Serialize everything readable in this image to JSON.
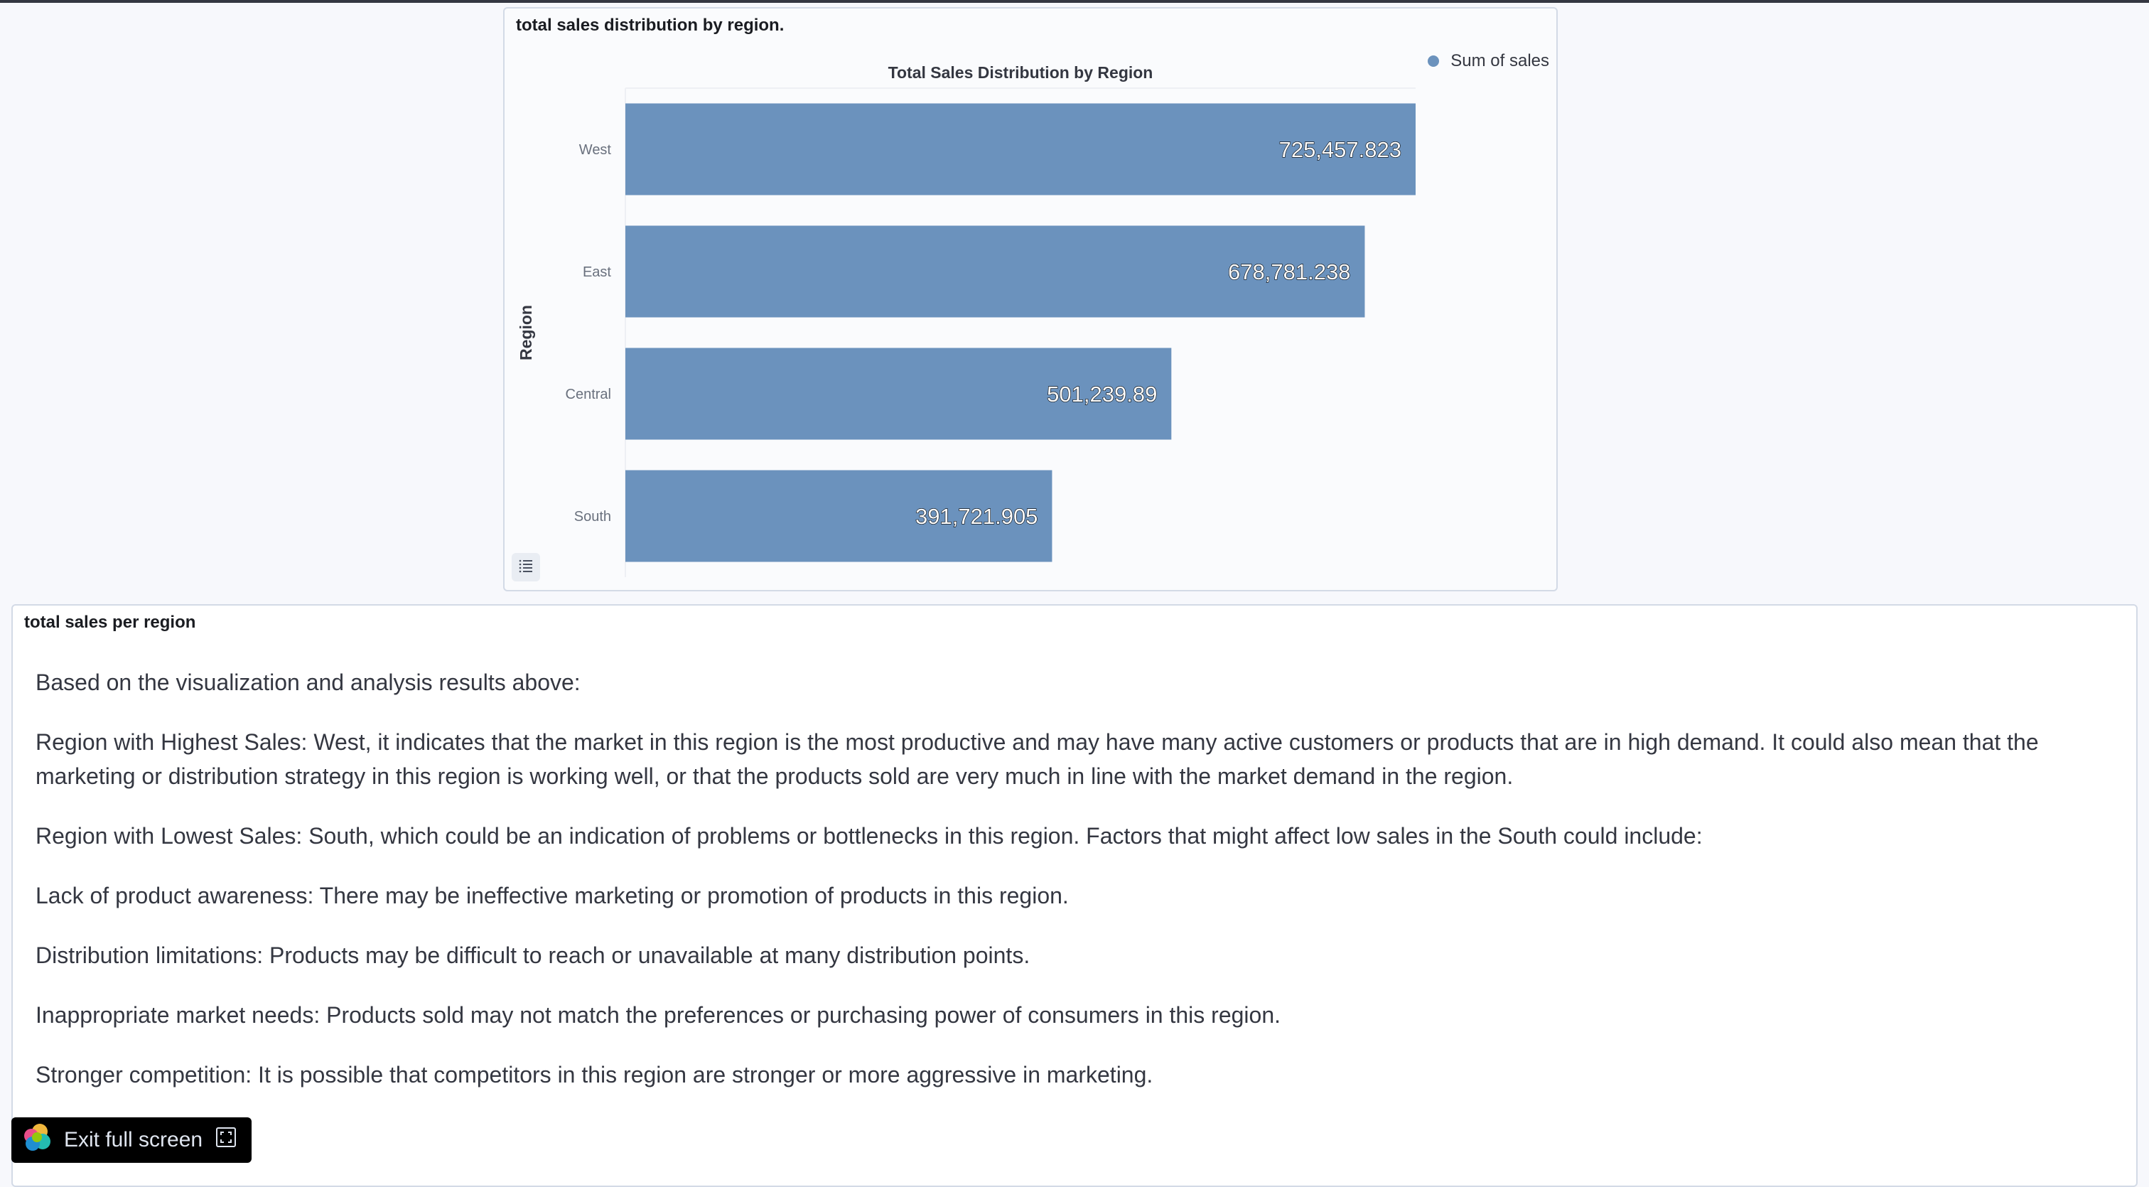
{
  "panels": {
    "chart_panel_title": "total sales distribution by region.",
    "text_panel_title": "total sales per region"
  },
  "chart_data": {
    "type": "bar",
    "orientation": "horizontal",
    "title": "Total Sales Distribution by Region",
    "xlabel": "",
    "ylabel": "Region",
    "categories": [
      "West",
      "East",
      "Central",
      "South"
    ],
    "series": [
      {
        "name": "Sum of sales",
        "values": [
          725457.823,
          678781.238,
          501239.89,
          391721.905
        ],
        "labels": [
          "725,457.823",
          "678,781.238",
          "501,239.89",
          "391,721.905"
        ]
      }
    ],
    "xlim": [
      0,
      725457.823
    ],
    "grid": false,
    "legend_position": "top-right",
    "bar_color": "#6b92bd"
  },
  "analysis": {
    "paragraphs": [
      "Based on the visualization and analysis results above:",
      "Region with Highest Sales: West, it indicates that the market in this region is the most productive and may have many active customers or products that are in high demand. It could also mean that the marketing or distribution strategy in this region is working well, or that the products sold are very much in line with the market demand in the region.",
      "Region with Lowest Sales: South, which could be an indication of problems or bottlenecks in this region. Factors that might affect low sales in the South could include:",
      "Lack of product awareness: There may be ineffective marketing or promotion of products in this region.",
      "Distribution limitations: Products may be difficult to reach or unavailable at many distribution points.",
      "Inappropriate market needs: Products sold may not match the preferences or purchasing power of consumers in this region.",
      "Stronger competition: It is possible that competitors in this region are stronger or more aggressive in marketing."
    ]
  },
  "exit_fullscreen": {
    "label": "Exit full screen",
    "icon": "fullscreen-exit-icon",
    "logo": "elastic-logo-icon"
  },
  "icons": {
    "legend_toggle": "list-icon"
  }
}
